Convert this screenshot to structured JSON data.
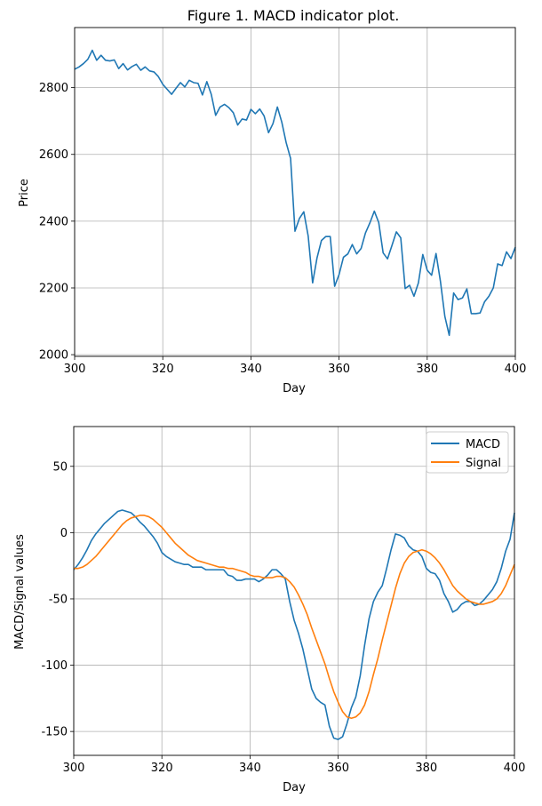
{
  "figure": {
    "title": "Figure 1. MACD indicator plot."
  },
  "chart_data": [
    {
      "type": "line",
      "title": "Figure 1. MACD indicator plot.",
      "xlabel": "Day",
      "ylabel": "Price",
      "xlim": [
        300,
        400
      ],
      "ylim": [
        1995,
        2980
      ],
      "xticks": [
        300,
        320,
        340,
        360,
        380,
        400
      ],
      "yticks": [
        2000,
        2200,
        2400,
        2600,
        2800
      ],
      "grid": true,
      "series": [
        {
          "color": "#1f77b4",
          "x": [
            300,
            301,
            302,
            303,
            304,
            305,
            306,
            307,
            308,
            309,
            310,
            311,
            312,
            313,
            314,
            315,
            316,
            317,
            318,
            319,
            320,
            321,
            322,
            323,
            324,
            325,
            326,
            327,
            328,
            329,
            330,
            331,
            332,
            333,
            334,
            335,
            336,
            337,
            338,
            339,
            340,
            341,
            342,
            343,
            344,
            345,
            346,
            347,
            348,
            349,
            350,
            351,
            352,
            353,
            354,
            355,
            356,
            357,
            358,
            359,
            360,
            361,
            362,
            363,
            364,
            365,
            366,
            367,
            368,
            369,
            370,
            371,
            372,
            373,
            374,
            375,
            376,
            377,
            378,
            379,
            380,
            381,
            382,
            383,
            384,
            385,
            386,
            387,
            388,
            389,
            390,
            391,
            392,
            393,
            394,
            395,
            396,
            397,
            398,
            399,
            400
          ],
          "values": [
            2855,
            2862,
            2872,
            2885,
            2912,
            2882,
            2897,
            2882,
            2880,
            2883,
            2857,
            2872,
            2853,
            2863,
            2870,
            2852,
            2862,
            2850,
            2847,
            2833,
            2810,
            2795,
            2780,
            2798,
            2815,
            2802,
            2822,
            2815,
            2813,
            2778,
            2818,
            2780,
            2717,
            2742,
            2750,
            2740,
            2725,
            2688,
            2706,
            2703,
            2735,
            2722,
            2736,
            2715,
            2665,
            2692,
            2742,
            2697,
            2635,
            2588,
            2370,
            2408,
            2428,
            2355,
            2215,
            2290,
            2342,
            2354,
            2354,
            2205,
            2240,
            2292,
            2302,
            2330,
            2302,
            2318,
            2365,
            2395,
            2430,
            2396,
            2305,
            2287,
            2327,
            2368,
            2350,
            2198,
            2208,
            2175,
            2215,
            2300,
            2253,
            2238,
            2303,
            2220,
            2115,
            2058,
            2185,
            2165,
            2170,
            2197,
            2123,
            2123,
            2125,
            2158,
            2175,
            2200,
            2272,
            2267,
            2308,
            2288,
            2322
          ]
        }
      ]
    },
    {
      "type": "line",
      "title": "",
      "xlabel": "Day",
      "ylabel": "MACD/Signal values",
      "xlim": [
        300,
        400
      ],
      "ylim": [
        -168,
        80
      ],
      "xticks": [
        300,
        320,
        340,
        360,
        380,
        400
      ],
      "yticks": [
        50,
        0,
        -50,
        -100,
        -150
      ],
      "grid": true,
      "legend": "top-right",
      "series": [
        {
          "name": "MACD",
          "color": "#1f77b4",
          "x": [
            300,
            301,
            302,
            303,
            304,
            305,
            306,
            307,
            308,
            309,
            310,
            311,
            312,
            313,
            314,
            315,
            316,
            317,
            318,
            319,
            320,
            321,
            322,
            323,
            324,
            325,
            326,
            327,
            328,
            329,
            330,
            331,
            332,
            333,
            334,
            335,
            336,
            337,
            338,
            339,
            340,
            341,
            342,
            343,
            344,
            345,
            346,
            347,
            348,
            349,
            350,
            351,
            352,
            353,
            354,
            355,
            356,
            357,
            358,
            359,
            360,
            361,
            362,
            363,
            364,
            365,
            366,
            367,
            368,
            369,
            370,
            371,
            372,
            373,
            374,
            375,
            376,
            377,
            378,
            379,
            380,
            381,
            382,
            383,
            384,
            385,
            386,
            387,
            388,
            389,
            390,
            391,
            392,
            393,
            394,
            395,
            396,
            397,
            398,
            399,
            400
          ],
          "values": [
            -28,
            -24,
            -19,
            -13,
            -6,
            -1,
            3,
            7,
            10,
            13,
            16,
            17,
            16,
            15,
            12,
            8,
            5,
            1,
            -3,
            -8,
            -15,
            -18,
            -20,
            -22,
            -23,
            -24,
            -24,
            -26,
            -26,
            -26,
            -28,
            -28,
            -28,
            -28,
            -28,
            -32,
            -33,
            -36,
            -36,
            -35,
            -35,
            -35,
            -37,
            -35,
            -32,
            -28,
            -28,
            -31,
            -35,
            -52,
            -66,
            -76,
            -88,
            -103,
            -118,
            -125,
            -128,
            -130,
            -146,
            -155,
            -156,
            -154,
            -144,
            -132,
            -124,
            -108,
            -85,
            -65,
            -52,
            -45,
            -40,
            -27,
            -13,
            -1,
            -2,
            -4,
            -10,
            -13,
            -14,
            -18,
            -27,
            -30,
            -31,
            -36,
            -46,
            -52,
            -60,
            -58,
            -54,
            -52,
            -52,
            -55,
            -54,
            -51,
            -47,
            -43,
            -37,
            -27,
            -14,
            -5,
            15
          ]
        },
        {
          "name": "Signal",
          "color": "#ff7f0e",
          "x": [
            300,
            301,
            302,
            303,
            304,
            305,
            306,
            307,
            308,
            309,
            310,
            311,
            312,
            313,
            314,
            315,
            316,
            317,
            318,
            319,
            320,
            321,
            322,
            323,
            324,
            325,
            326,
            327,
            328,
            329,
            330,
            331,
            332,
            333,
            334,
            335,
            336,
            337,
            338,
            339,
            340,
            341,
            342,
            343,
            344,
            345,
            346,
            347,
            348,
            349,
            350,
            351,
            352,
            353,
            354,
            355,
            356,
            357,
            358,
            359,
            360,
            361,
            362,
            363,
            364,
            365,
            366,
            367,
            368,
            369,
            370,
            371,
            372,
            373,
            374,
            375,
            376,
            377,
            378,
            379,
            380,
            381,
            382,
            383,
            384,
            385,
            386,
            387,
            388,
            389,
            390,
            391,
            392,
            393,
            394,
            395,
            396,
            397,
            398,
            399,
            400
          ],
          "values": [
            -27,
            -27,
            -26,
            -24,
            -21,
            -18,
            -14,
            -10,
            -6,
            -2,
            2,
            6,
            9,
            11,
            12,
            13,
            13,
            12,
            10,
            7,
            4,
            0,
            -4,
            -8,
            -11,
            -14,
            -17,
            -19,
            -21,
            -22,
            -23,
            -24,
            -25,
            -26,
            -26,
            -27,
            -27,
            -28,
            -29,
            -30,
            -32,
            -33,
            -33,
            -34,
            -34,
            -34,
            -33,
            -33,
            -34,
            -37,
            -41,
            -47,
            -54,
            -62,
            -72,
            -81,
            -90,
            -99,
            -110,
            -120,
            -128,
            -135,
            -139,
            -140,
            -139,
            -136,
            -130,
            -120,
            -107,
            -95,
            -81,
            -68,
            -55,
            -42,
            -31,
            -23,
            -18,
            -15,
            -14,
            -13,
            -14,
            -16,
            -19,
            -23,
            -28,
            -34,
            -40,
            -44,
            -47,
            -50,
            -52,
            -53,
            -54,
            -54,
            -53,
            -52,
            -50,
            -46,
            -40,
            -32,
            -24
          ]
        }
      ]
    }
  ]
}
